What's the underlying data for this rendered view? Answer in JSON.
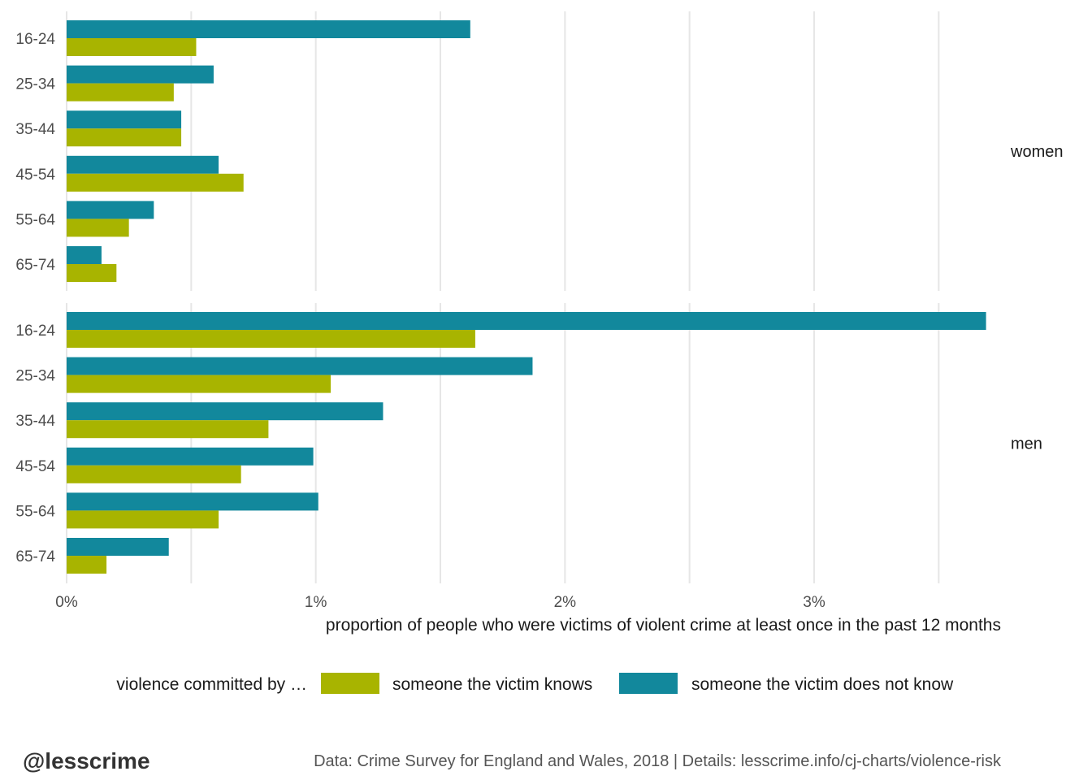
{
  "chart_data": {
    "type": "bar",
    "orientation": "horizontal",
    "facets": [
      {
        "label": "women",
        "categories": [
          "16-24",
          "25-34",
          "35-44",
          "45-54",
          "55-64",
          "65-74"
        ],
        "series": [
          {
            "name": "someone the victim does not know",
            "values": [
              1.62,
              0.59,
              0.46,
              0.61,
              0.35,
              0.14
            ]
          },
          {
            "name": "someone the victim knows",
            "values": [
              0.52,
              0.43,
              0.46,
              0.71,
              0.25,
              0.2
            ]
          }
        ]
      },
      {
        "label": "men",
        "categories": [
          "16-24",
          "25-34",
          "35-44",
          "45-54",
          "55-64",
          "65-74"
        ],
        "series": [
          {
            "name": "someone the victim does not know",
            "values": [
              3.69,
              1.87,
              1.27,
              0.99,
              1.01,
              0.41
            ]
          },
          {
            "name": "someone the victim knows",
            "values": [
              1.64,
              1.06,
              0.81,
              0.7,
              0.61,
              0.16
            ]
          }
        ]
      }
    ],
    "xlabel": "proportion of people who were victims of violent crime at least once in the past 12 months",
    "ylabel": "",
    "xlim": [
      0,
      3.75
    ],
    "xticks": [
      {
        "value": 0,
        "label": "0%"
      },
      {
        "value": 1,
        "label": "1%"
      },
      {
        "value": 2,
        "label": "2%"
      },
      {
        "value": 3,
        "label": "3%"
      }
    ],
    "minor_gridlines": [
      0.5,
      1.5,
      2.5,
      3.5
    ],
    "grid": true,
    "legend": {
      "title": "violence committed by …",
      "position": "bottom",
      "items": [
        {
          "name": "someone the victim knows",
          "color": "#a8b400"
        },
        {
          "name": "someone the victim does not know",
          "color": "#12889c"
        }
      ]
    }
  },
  "colors": {
    "knows": "#a8b400",
    "does_not_know": "#12889c",
    "grid": "#e6e6e6"
  },
  "footer": {
    "handle": "@lesscrime",
    "caption": "Data: Crime Survey for England and Wales, 2018 |  Details: lesscrime.info/cj-charts/violence-risk"
  }
}
